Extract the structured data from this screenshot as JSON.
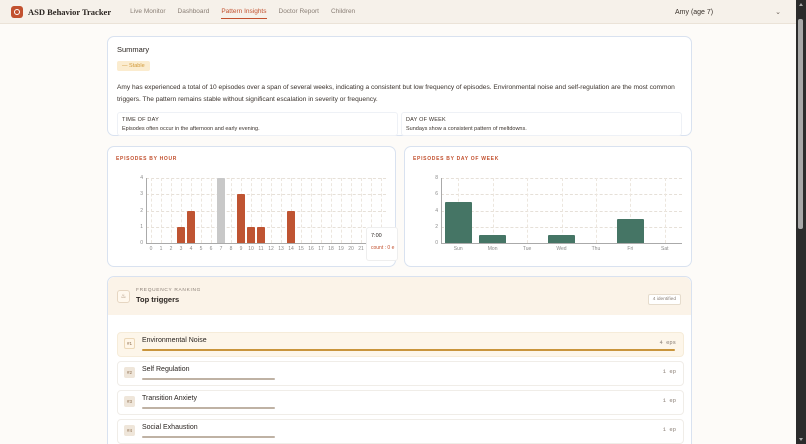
{
  "app": {
    "title": "ASD Behavior Tracker",
    "nav": [
      {
        "label": "Live Monitor",
        "active": false
      },
      {
        "label": "Dashboard",
        "active": false
      },
      {
        "label": "Pattern Insights",
        "active": true
      },
      {
        "label": "Doctor Report",
        "active": false
      },
      {
        "label": "Children",
        "active": false
      }
    ],
    "child_selector": {
      "value": "Amy (age 7)",
      "icon": "chevron-down-icon"
    }
  },
  "summary": {
    "title": "Summary",
    "trend_badge": "— Stable",
    "text": "Amy has experienced a total of 10 episodes over a span of several weeks, indicating a consistent but low frequency of episodes. Environmental noise and self-regulation are the most common triggers. The pattern remains stable without significant escalation in severity or frequency.",
    "insights": [
      {
        "label": "TIME OF DAY",
        "text": "Episodes often occur in the afternoon and early evening."
      },
      {
        "label": "DAY OF WEEK",
        "text": "Sundays show a consistent pattern of meltdowns."
      }
    ]
  },
  "chart_data": [
    {
      "type": "bar",
      "title": "EPISODES BY HOUR",
      "xlabel": "",
      "ylabel": "",
      "categories": [
        "0",
        "1",
        "2",
        "3",
        "4",
        "5",
        "6",
        "7",
        "8",
        "9",
        "10",
        "11",
        "12",
        "13",
        "14",
        "15",
        "16",
        "17",
        "18",
        "19",
        "20",
        "21",
        "22",
        "23"
      ],
      "values": [
        0,
        0,
        0,
        1,
        2,
        0,
        0,
        0,
        0,
        3,
        1,
        1,
        0,
        0,
        2,
        0,
        0,
        0,
        0,
        0,
        0,
        0,
        0,
        0
      ],
      "y_ticks": [
        0,
        1,
        2,
        3,
        4
      ],
      "ylim": [
        0,
        4
      ],
      "grid": true,
      "color": "#bf5432",
      "hover": {
        "category": "7",
        "highlight_color": "#c8c8c8",
        "tooltip_title": "7:00",
        "tooltip_value": "count : 0 e"
      }
    },
    {
      "type": "bar",
      "title": "EPISODES BY DAY OF WEEK",
      "xlabel": "",
      "ylabel": "",
      "categories": [
        "Sun",
        "Mon",
        "Tue",
        "Wed",
        "Thu",
        "Fri",
        "Sat"
      ],
      "values": [
        5,
        1,
        0,
        1,
        0,
        3,
        0
      ],
      "y_ticks": [
        0,
        2,
        4,
        6,
        8
      ],
      "ylim": [
        0,
        8
      ],
      "grid": true,
      "color": "#457565"
    }
  ],
  "triggers": {
    "eyebrow": "FREQUENCY RANKING",
    "title": "Top triggers",
    "count_badge": "4 identified",
    "icon": "flame-icon",
    "items": [
      {
        "rank": "#1",
        "name": "Environmental Noise",
        "count": "4 eps",
        "pct": 100,
        "color": "#c9953c"
      },
      {
        "rank": "#2",
        "name": "Self Regulation",
        "count": "1 ep",
        "pct": 25,
        "color": "#bfb2a4"
      },
      {
        "rank": "#3",
        "name": "Transition Anxiety",
        "count": "1 ep",
        "pct": 25,
        "color": "#bfb2a4"
      },
      {
        "rank": "#4",
        "name": "Social Exhaustion",
        "count": "1 ep",
        "pct": 25,
        "color": "#bfb2a4"
      }
    ]
  }
}
